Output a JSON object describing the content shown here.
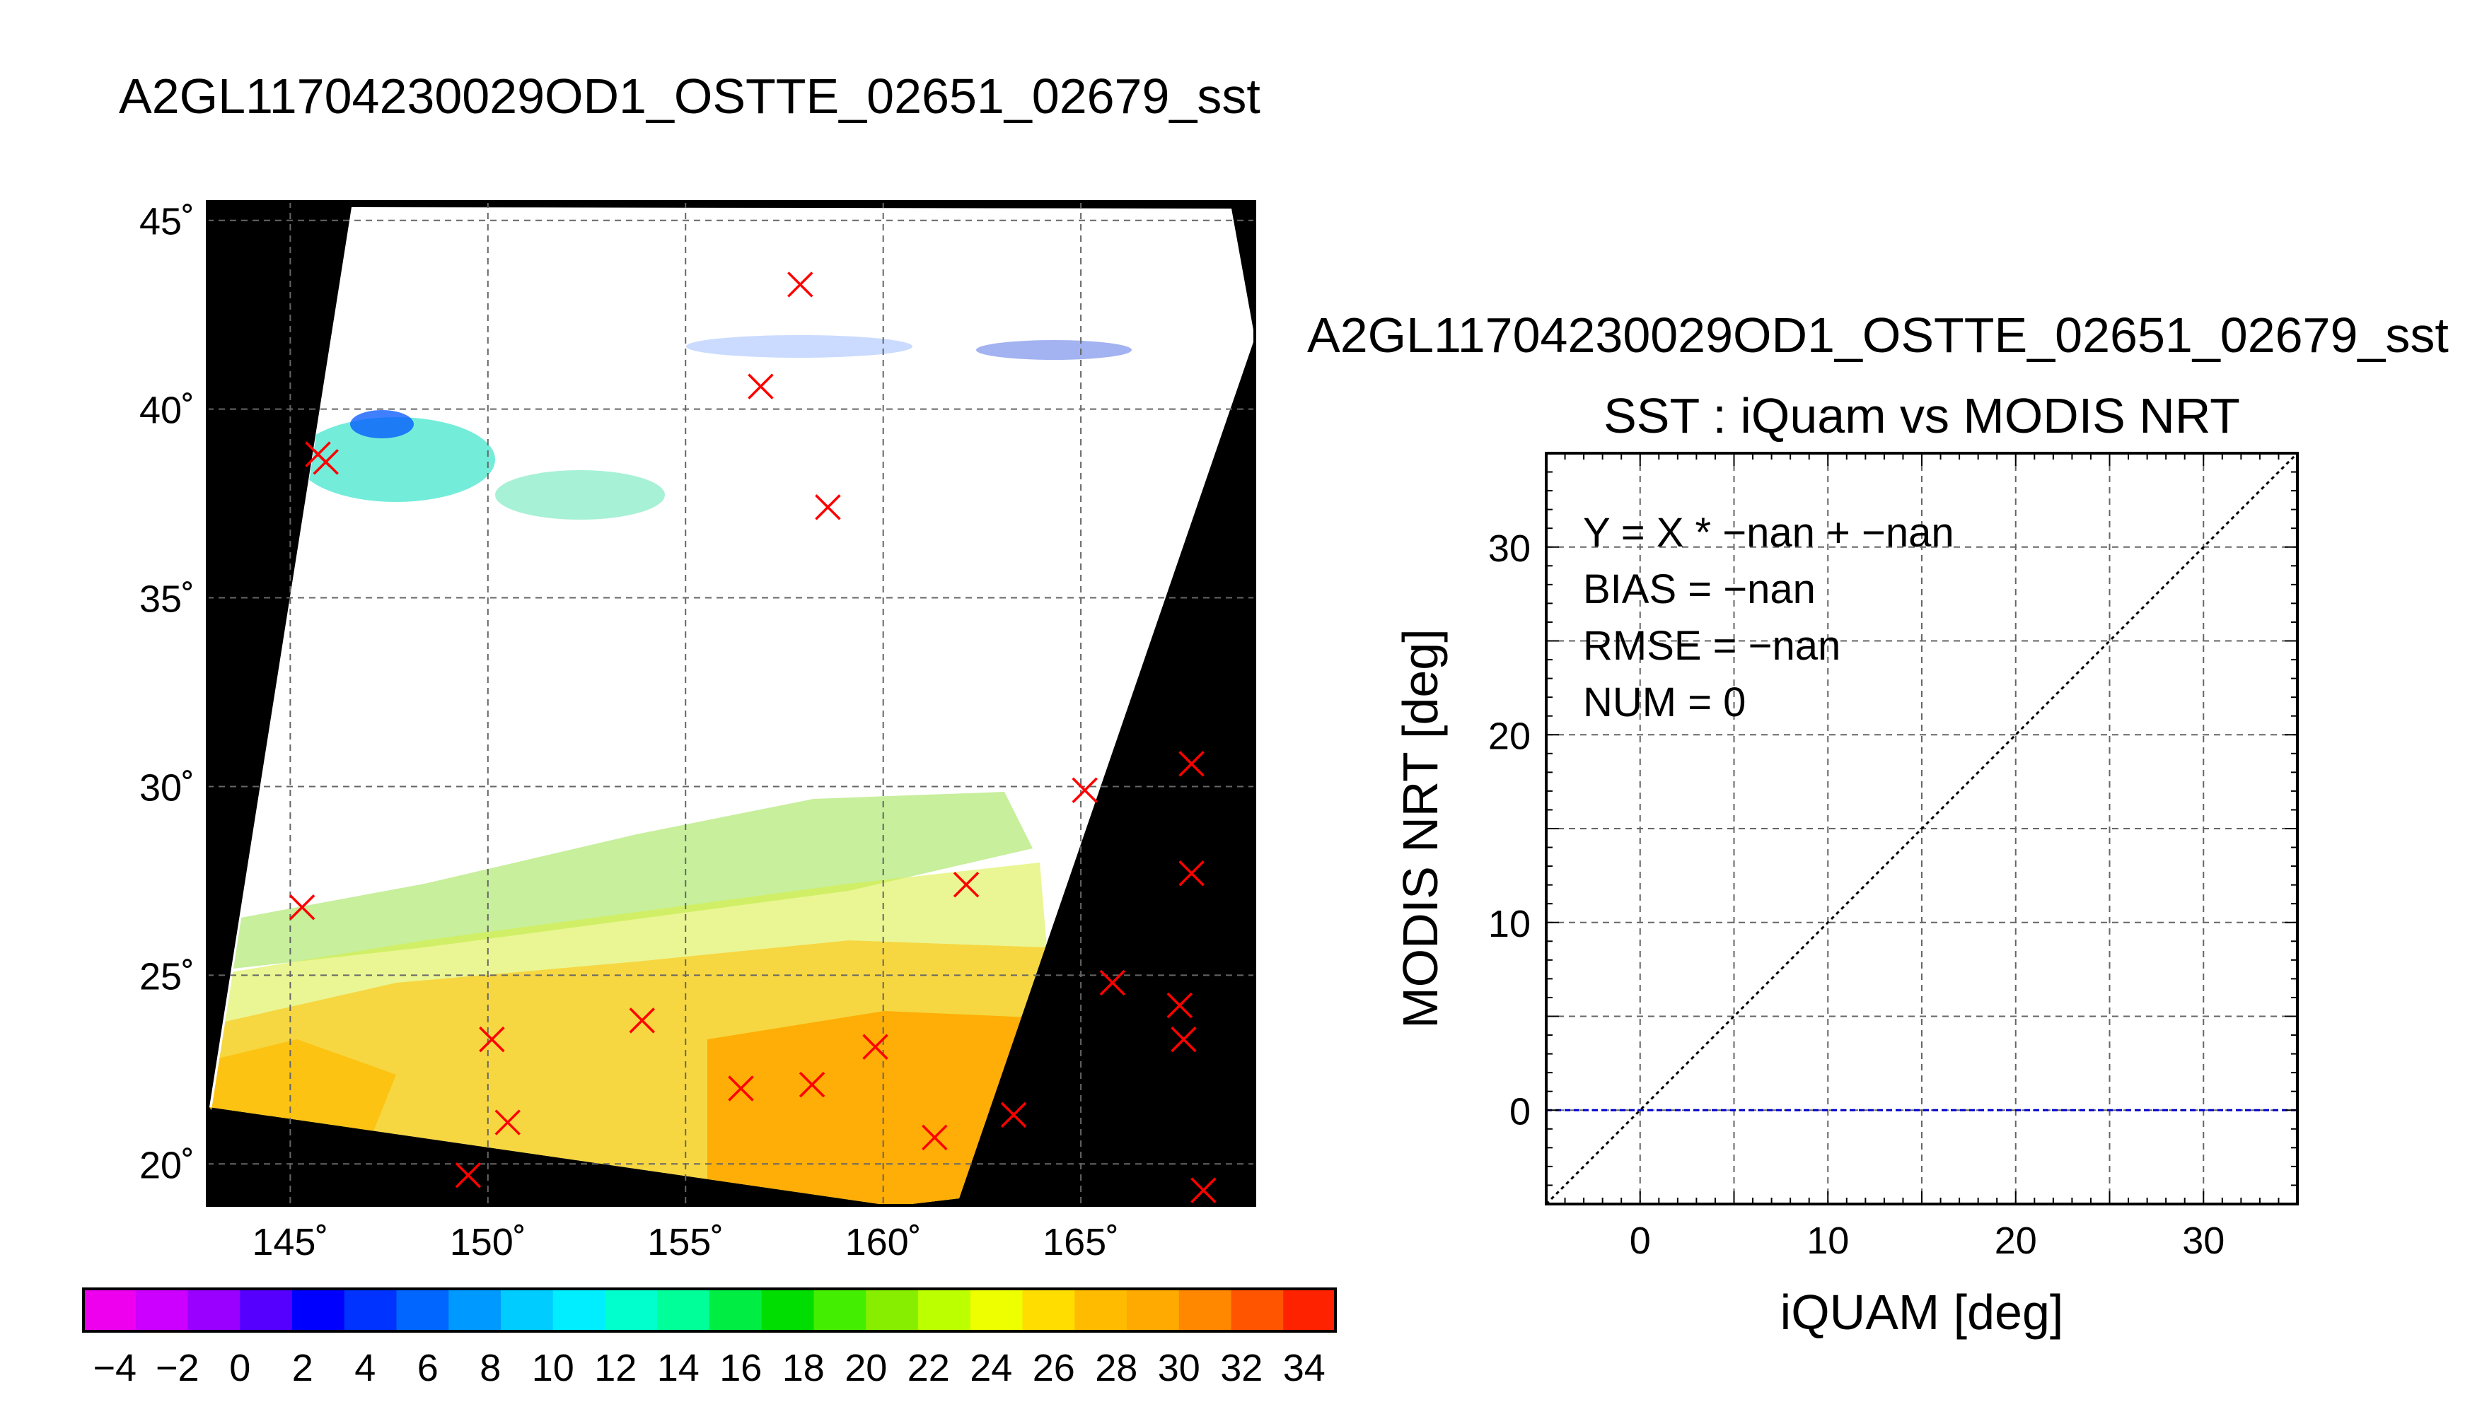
{
  "map_title": "A2GL11704230029OD1_OSTTE_02651_02679_sst",
  "scatter_file_title": "A2GL11704230029OD1_OSTTE_02651_02679_sst",
  "colors": {
    "grid": "#666666",
    "mask": "#000000",
    "marker": "#ff0000",
    "zero_line": "#0000cc",
    "identity_line": "#000000"
  },
  "chart_data": [
    {
      "type": "heatmap",
      "title": "A2GL11704230029OD1_OSTTE_02651_02679_sst",
      "x_ticks": [
        145,
        150,
        155,
        160,
        165
      ],
      "x_tick_labels": [
        "145˚",
        "150˚",
        "155˚",
        "160˚",
        "165˚"
      ],
      "y_ticks": [
        20,
        25,
        30,
        35,
        40,
        45
      ],
      "y_tick_labels": [
        "20˚",
        "25˚",
        "30˚",
        "35˚",
        "40˚",
        "45˚"
      ],
      "xlim": [
        142.9,
        169.4
      ],
      "ylim": [
        18.9,
        45.5
      ],
      "grid": true,
      "markers": [
        [
          157.9,
          43.3
        ],
        [
          156.9,
          40.6
        ],
        [
          158.6,
          37.4
        ],
        [
          145.7,
          38.8
        ],
        [
          145.9,
          38.6
        ],
        [
          145.3,
          26.8
        ],
        [
          150.1,
          23.3
        ],
        [
          150.5,
          21.1
        ],
        [
          149.5,
          19.7
        ],
        [
          153.9,
          23.8
        ],
        [
          156.4,
          22.0
        ],
        [
          158.2,
          22.1
        ],
        [
          159.8,
          23.1
        ],
        [
          161.3,
          20.7
        ],
        [
          162.1,
          27.4
        ],
        [
          163.3,
          21.3
        ],
        [
          165.1,
          29.9
        ],
        [
          165.8,
          24.8
        ],
        [
          167.5,
          24.2
        ],
        [
          167.6,
          23.3
        ],
        [
          167.8,
          30.6
        ],
        [
          167.8,
          27.7
        ],
        [
          168.1,
          19.3
        ]
      ],
      "colorbar": {
        "min": -5,
        "max": 35,
        "step": 2,
        "tick_labels": [
          "−4",
          "−2",
          "0",
          "2",
          "4",
          "6",
          "8",
          "10",
          "12",
          "14",
          "16",
          "18",
          "20",
          "22",
          "24",
          "26",
          "28",
          "30",
          "32",
          "34"
        ],
        "colors": [
          "#ee00ee",
          "#cc00ff",
          "#9900ff",
          "#5500ff",
          "#0000ff",
          "#0033ff",
          "#0066ff",
          "#0099ff",
          "#00ccff",
          "#00eeff",
          "#00ffcc",
          "#00ff99",
          "#00ee44",
          "#00dd00",
          "#44ee00",
          "#88ee00",
          "#bbff00",
          "#eeff00",
          "#ffdd00",
          "#ffbb00",
          "#ffaa00",
          "#ff8800",
          "#ff5500",
          "#ff2200"
        ]
      }
    },
    {
      "type": "scatter",
      "title": "SST : iQuam vs MODIS NRT",
      "xlabel": "iQUAM [deg]",
      "ylabel": "MODIS NRT [deg]",
      "xlim": [
        -5,
        35
      ],
      "ylim": [
        -5,
        35
      ],
      "x_ticks": [
        0,
        10,
        20,
        30
      ],
      "y_ticks": [
        0,
        10,
        20,
        30
      ],
      "grid_step": 5,
      "grid": true,
      "annotations": [
        "Y = X * −nan + −nan",
        "BIAS = −nan",
        "RMSE = −nan",
        "NUM = 0"
      ],
      "points": [],
      "lines": [
        {
          "kind": "identity",
          "style": "dotted",
          "x": [
            -5,
            35
          ],
          "y": [
            -5,
            35
          ]
        },
        {
          "kind": "zero",
          "style": "dashed",
          "x": [
            -5,
            35
          ],
          "y": [
            0,
            0
          ]
        }
      ]
    }
  ]
}
